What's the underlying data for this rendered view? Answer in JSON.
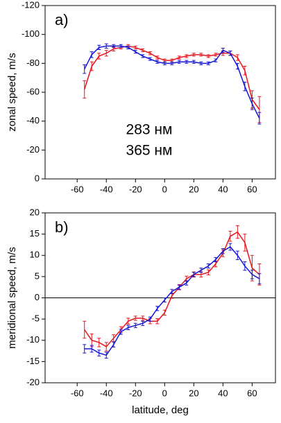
{
  "chart_data": [
    {
      "type": "line",
      "panel_label": "a)",
      "ylabel": "zonal speed, m/s",
      "xlim": [
        -82,
        76
      ],
      "ylim": [
        0,
        -120
      ],
      "xticks": [
        -60,
        -40,
        -20,
        0,
        20,
        40,
        60
      ],
      "yticks": [
        0,
        -20,
        -40,
        -60,
        -80,
        -100,
        -120
      ],
      "x": [
        -55,
        -50,
        -45,
        -40,
        -35,
        -30,
        -25,
        -20,
        -15,
        -10,
        -5,
        0,
        5,
        10,
        15,
        20,
        25,
        30,
        35,
        40,
        45,
        50,
        55,
        60,
        65
      ],
      "series": [
        {
          "name": "283 нм",
          "color": "#e8141b",
          "values": [
            -62,
            -78,
            -85,
            -87,
            -90,
            -91,
            -92,
            -91,
            -89,
            -87,
            -84,
            -82,
            -82,
            -84,
            -85,
            -86,
            -86,
            -85,
            -86,
            -87,
            -87,
            -84,
            -75,
            -55,
            -48
          ],
          "errors": [
            6,
            3,
            2,
            2,
            1.5,
            1,
            1,
            1,
            1,
            1,
            1,
            1,
            1,
            1,
            1,
            1,
            1,
            1,
            1,
            1.5,
            1.5,
            2,
            3,
            6,
            9
          ]
        },
        {
          "name": "365 нм",
          "color": "#1515d4",
          "values": [
            -76,
            -86,
            -91,
            -92,
            -92,
            -92,
            -91,
            -88,
            -85,
            -83,
            -81,
            -80,
            -80,
            -81,
            -81,
            -81,
            -80,
            -80,
            -82,
            -89,
            -87,
            -78,
            -64,
            -52,
            -42
          ],
          "errors": [
            3,
            2,
            1.5,
            1.5,
            1,
            1,
            1,
            1,
            1,
            1,
            1,
            1,
            1,
            1,
            1,
            1,
            1,
            1,
            1,
            1.5,
            1.5,
            2,
            3,
            4,
            4
          ]
        }
      ]
    },
    {
      "type": "line",
      "panel_label": "b)",
      "ylabel": "meridional speed, m/s",
      "xlabel": "latitude, deg",
      "xlim": [
        -82,
        76
      ],
      "ylim": [
        -20,
        20
      ],
      "xticks": [
        -60,
        -40,
        -20,
        0,
        20,
        40,
        60
      ],
      "yticks": [
        -20,
        -15,
        -10,
        -5,
        0,
        5,
        10,
        15,
        20
      ],
      "zero_line": true,
      "x": [
        -55,
        -50,
        -45,
        -40,
        -35,
        -30,
        -25,
        -20,
        -15,
        -10,
        -5,
        0,
        5,
        10,
        15,
        20,
        25,
        30,
        35,
        40,
        45,
        50,
        55,
        60,
        65
      ],
      "series": [
        {
          "color": "#e8141b",
          "values": [
            -7.5,
            -10,
            -10.5,
            -11.5,
            -9.5,
            -7.5,
            -5.5,
            -4.8,
            -4.8,
            -5.5,
            -5.5,
            -3.5,
            0.5,
            2.5,
            4.5,
            5.5,
            5.5,
            6,
            8,
            10.5,
            14.5,
            15.5,
            13,
            7,
            5.5
          ],
          "errors": [
            2,
            1.5,
            1,
            1,
            0.8,
            0.7,
            0.7,
            0.5,
            0.5,
            0.6,
            0.6,
            0.6,
            0.6,
            0.6,
            0.6,
            0.6,
            0.6,
            0.6,
            0.7,
            0.8,
            1.2,
            1.5,
            2,
            3,
            2.5
          ]
        },
        {
          "color": "#1515d4",
          "values": [
            -12,
            -12,
            -13,
            -13.5,
            -11,
            -8,
            -7,
            -6.5,
            -6,
            -5,
            -2.5,
            -0.5,
            1.5,
            2.5,
            3.5,
            5.5,
            6.5,
            7.5,
            9,
            11,
            12,
            10,
            7.5,
            5.5,
            4.5
          ],
          "errors": [
            1,
            0.8,
            0.7,
            0.7,
            0.6,
            0.6,
            0.5,
            0.5,
            0.5,
            0.5,
            0.5,
            0.5,
            0.5,
            0.5,
            0.5,
            0.5,
            0.5,
            0.5,
            0.5,
            0.6,
            0.8,
            1,
            1,
            1,
            1.2
          ]
        }
      ]
    }
  ]
}
